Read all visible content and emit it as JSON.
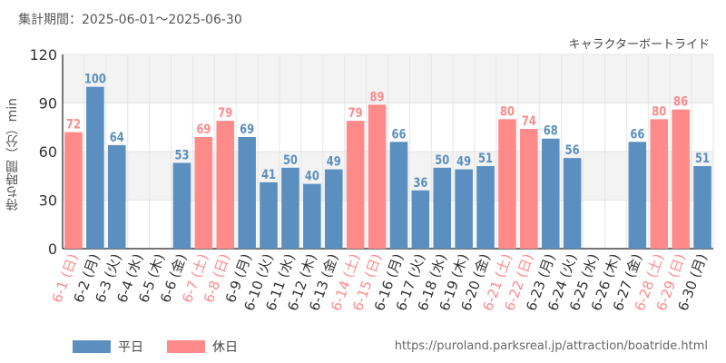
{
  "period_label": "集計期間：2025-06-01～2025-06-30",
  "attraction": "キャラクターボートライド",
  "source_url": "https://puroland.parksreal.jp/attraction/boatride.html",
  "colors": {
    "weekday": "#5b8fbf",
    "holiday": "#ff8a8a",
    "grid": "#e6e6e6",
    "band": "#f3f3f3"
  },
  "chart_data": {
    "type": "bar",
    "ylabel": "待ち時間（分）min",
    "ylim": [
      0,
      120
    ],
    "yticks": [
      0,
      30,
      60,
      90,
      120
    ],
    "grid": true,
    "legend_position": "bottom-left",
    "series": [
      {
        "name": "平日",
        "key": "weekday"
      },
      {
        "name": "休日",
        "key": "holiday"
      }
    ],
    "categories": [
      "6-1 (日)",
      "6-2 (月)",
      "6-3 (火)",
      "6-4 (水)",
      "6-5 (木)",
      "6-6 (金)",
      "6-7 (土)",
      "6-8 (日)",
      "6-9 (月)",
      "6-10 (火)",
      "6-11 (水)",
      "6-12 (木)",
      "6-13 (金)",
      "6-14 (土)",
      "6-15 (日)",
      "6-16 (月)",
      "6-17 (火)",
      "6-18 (水)",
      "6-19 (木)",
      "6-20 (金)",
      "6-21 (土)",
      "6-22 (日)",
      "6-23 (月)",
      "6-24 (火)",
      "6-25 (水)",
      "6-26 (木)",
      "6-27 (金)",
      "6-28 (土)",
      "6-29 (日)",
      "6-30 (月)"
    ],
    "values": [
      72,
      100,
      64,
      null,
      null,
      53,
      69,
      79,
      69,
      41,
      50,
      40,
      49,
      79,
      89,
      66,
      36,
      50,
      49,
      51,
      80,
      74,
      68,
      56,
      null,
      null,
      66,
      80,
      86,
      51
    ],
    "day_type": [
      "holiday",
      "weekday",
      "weekday",
      "weekday",
      "weekday",
      "weekday",
      "holiday",
      "holiday",
      "weekday",
      "weekday",
      "weekday",
      "weekday",
      "weekday",
      "holiday",
      "holiday",
      "weekday",
      "weekday",
      "weekday",
      "weekday",
      "weekday",
      "holiday",
      "holiday",
      "weekday",
      "weekday",
      "weekday",
      "weekday",
      "weekday",
      "holiday",
      "holiday",
      "weekday"
    ]
  }
}
